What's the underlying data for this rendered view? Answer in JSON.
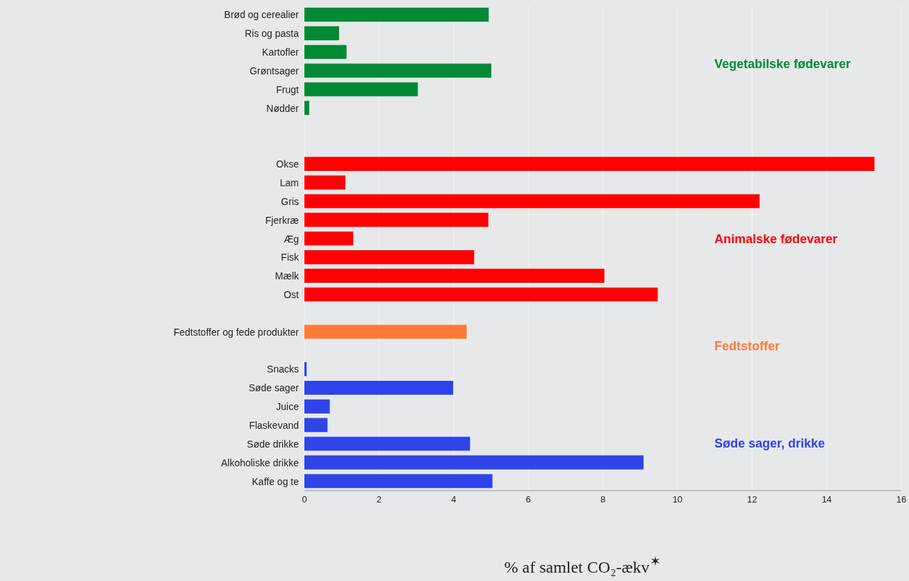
{
  "chart_data": {
    "type": "bar",
    "orientation": "horizontal",
    "xlabel": "% af samlet CO₂-ækv$^{✶}$",
    "categories": [
      "Brød og cerealier",
      "Ris og pasta",
      "Kartofler",
      "Grøntsager",
      "Frugt",
      "Nødder",
      null,
      null,
      "Okse",
      "Lam",
      "Gris",
      "Fjerkræ",
      "Æg",
      "Fisk",
      "Mælk",
      "Ost",
      null,
      "Fedtstoffer og fede produkter",
      null,
      "Snacks",
      "Søde sager",
      "Juice",
      "Flaskevand",
      "Søde drikke",
      "Alkoholiske drikke",
      "Kaffe og te"
    ],
    "series": [
      {
        "name": "Vegetabilske fødevarer",
        "color": "#008a35",
        "values": [
          4.94,
          0.93,
          1.13,
          5.01,
          3.04,
          0.13,
          null,
          null,
          null,
          null,
          null,
          null,
          null,
          null,
          null,
          null,
          null,
          null,
          null,
          null,
          null,
          null,
          null,
          null,
          null,
          null
        ]
      },
      {
        "name": "Animalske fødevarer",
        "color": "#ff0000",
        "values": [
          null,
          null,
          null,
          null,
          null,
          null,
          null,
          null,
          15.28,
          1.1,
          12.2,
          4.93,
          1.31,
          4.55,
          8.04,
          9.47,
          null,
          null,
          null,
          null,
          null,
          null,
          null,
          null,
          null,
          null
        ]
      },
      {
        "name": "Fedtstoffer",
        "color": "#fd7b37",
        "values": [
          null,
          null,
          null,
          null,
          null,
          null,
          null,
          null,
          null,
          null,
          null,
          null,
          null,
          null,
          null,
          null,
          null,
          4.35,
          null,
          null,
          null,
          null,
          null,
          null,
          null,
          null
        ]
      },
      {
        "name": "Søde sager, drikke",
        "color": "#2f44e8",
        "values": [
          null,
          null,
          null,
          null,
          null,
          null,
          null,
          null,
          null,
          null,
          null,
          null,
          null,
          null,
          null,
          null,
          null,
          null,
          null,
          0.06,
          3.99,
          0.68,
          0.62,
          4.44,
          9.09,
          5.04
        ]
      }
    ],
    "xlim": [
      0,
      16
    ],
    "xticks": [
      0,
      2,
      4,
      6,
      8,
      10,
      12,
      14,
      16
    ],
    "grid": "x"
  }
}
